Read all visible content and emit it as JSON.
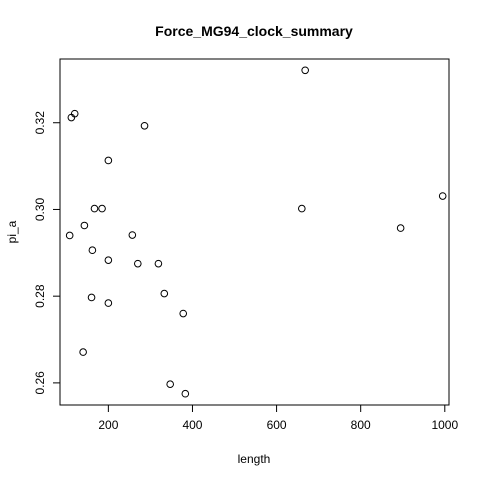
{
  "chart_data": {
    "type": "scatter",
    "title": "Force_MG94_clock_summary",
    "xlabel": "length",
    "ylabel": "pi_a",
    "xlim": [
      85,
      1010
    ],
    "ylim": [
      0.2549,
      0.3347
    ],
    "x_ticks": [
      200,
      400,
      600,
      800,
      1000
    ],
    "y_ticks": [
      0.26,
      0.28,
      0.3,
      0.32
    ],
    "x_tick_labels": [
      "200",
      "400",
      "600",
      "800",
      "1000"
    ],
    "y_tick_labels": [
      "0.26",
      "0.28",
      "0.30",
      "0.32"
    ],
    "grid": false,
    "marker": "open-circle",
    "color": "#000000",
    "points": [
      {
        "x": 112,
        "y": 0.3212
      },
      {
        "x": 120,
        "y": 0.3221
      },
      {
        "x": 286,
        "y": 0.3193
      },
      {
        "x": 200,
        "y": 0.3113
      },
      {
        "x": 668,
        "y": 0.3321
      },
      {
        "x": 167,
        "y": 0.3002
      },
      {
        "x": 185,
        "y": 0.3002
      },
      {
        "x": 660,
        "y": 0.3002
      },
      {
        "x": 995,
        "y": 0.3031
      },
      {
        "x": 108,
        "y": 0.294
      },
      {
        "x": 143,
        "y": 0.2963
      },
      {
        "x": 257,
        "y": 0.2941
      },
      {
        "x": 895,
        "y": 0.2957
      },
      {
        "x": 162,
        "y": 0.2906
      },
      {
        "x": 200,
        "y": 0.2883
      },
      {
        "x": 270,
        "y": 0.2875
      },
      {
        "x": 319,
        "y": 0.2875
      },
      {
        "x": 333,
        "y": 0.2806
      },
      {
        "x": 160,
        "y": 0.2797
      },
      {
        "x": 200,
        "y": 0.2784
      },
      {
        "x": 378,
        "y": 0.276
      },
      {
        "x": 140,
        "y": 0.2671
      },
      {
        "x": 347,
        "y": 0.2597
      },
      {
        "x": 383,
        "y": 0.2575
      }
    ]
  }
}
